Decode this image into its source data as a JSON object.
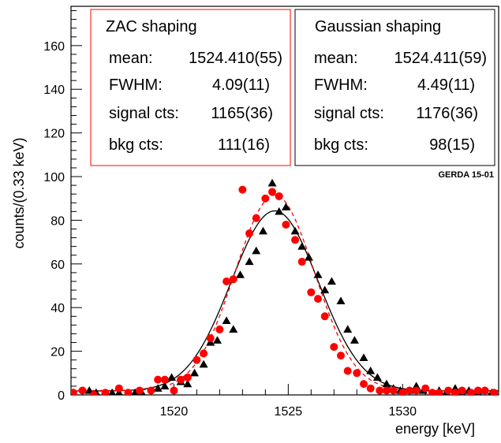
{
  "chart_data": {
    "type": "scatter",
    "title": "",
    "xlabel": "energy [keV]",
    "ylabel": "counts/(0.33 keV)",
    "xlim": [
      1515.5,
      1534.2
    ],
    "ylim": [
      0,
      178
    ],
    "grid": false,
    "x_ticks": [
      1520,
      1525,
      1530
    ],
    "y_ticks": [
      0,
      20,
      40,
      60,
      80,
      100,
      120,
      140,
      160
    ],
    "annotation": "GERDA 15-01",
    "legend": [
      {
        "key": "zac",
        "lines": [
          {
            "label": "ZAC shaping",
            "value": ""
          },
          {
            "label": "mean:",
            "value": "1524.410(55)"
          },
          {
            "label": "FWHM:",
            "value": "4.09(11)"
          },
          {
            "label": "signal cts:",
            "value": "1165(36)"
          },
          {
            "label": "bkg cts:",
            "value": "111(16)"
          }
        ]
      },
      {
        "key": "gauss",
        "lines": [
          {
            "label": "Gaussian shaping",
            "value": ""
          },
          {
            "label": "mean:",
            "value": "1524.411(59)"
          },
          {
            "label": "FWHM:",
            "value": "4.49(11)"
          },
          {
            "label": "signal cts:",
            "value": "1176(36)"
          },
          {
            "label": "bkg cts:",
            "value": "98(15)"
          }
        ]
      }
    ],
    "series": [
      {
        "key": "gauss",
        "marker": "triangle",
        "color": "#000000",
        "fit_style": "solid",
        "fit": {
          "amplitude": 82.5,
          "mean": 1524.411,
          "fwhm": 4.49,
          "background": 1.8
        },
        "points": [
          [
            1515.6,
            1
          ],
          [
            1516.3,
            2
          ],
          [
            1516.6,
            1
          ],
          [
            1517.3,
            1
          ],
          [
            1517.6,
            1
          ],
          [
            1518.3,
            1
          ],
          [
            1518.6,
            1
          ],
          [
            1519.3,
            3
          ],
          [
            1519.6,
            4
          ],
          [
            1519.9,
            8
          ],
          [
            1520.3,
            6
          ],
          [
            1520.6,
            5
          ],
          [
            1520.9,
            10
          ],
          [
            1521.3,
            14
          ],
          [
            1521.6,
            24
          ],
          [
            1521.9,
            25
          ],
          [
            1522.3,
            34
          ],
          [
            1522.6,
            30
          ],
          [
            1522.9,
            55
          ],
          [
            1523.3,
            61
          ],
          [
            1523.6,
            66
          ],
          [
            1523.9,
            75
          ],
          [
            1524.3,
            97
          ],
          [
            1524.6,
            84
          ],
          [
            1524.9,
            86
          ],
          [
            1525.3,
            75
          ],
          [
            1525.6,
            68
          ],
          [
            1525.9,
            63
          ],
          [
            1526.3,
            55
          ],
          [
            1526.6,
            48
          ],
          [
            1526.9,
            52
          ],
          [
            1527.3,
            43
          ],
          [
            1527.6,
            30
          ],
          [
            1527.9,
            25
          ],
          [
            1528.3,
            17
          ],
          [
            1528.6,
            11
          ],
          [
            1528.9,
            8
          ],
          [
            1529.3,
            5
          ],
          [
            1529.6,
            3
          ],
          [
            1529.9,
            2
          ],
          [
            1530.3,
            2
          ],
          [
            1530.6,
            4
          ],
          [
            1530.9,
            2
          ],
          [
            1531.3,
            1
          ],
          [
            1531.6,
            2
          ],
          [
            1531.9,
            1
          ],
          [
            1532.3,
            3
          ],
          [
            1532.6,
            1
          ],
          [
            1532.9,
            2
          ],
          [
            1533.3,
            1
          ],
          [
            1533.6,
            2
          ],
          [
            1533.9,
            1
          ]
        ]
      },
      {
        "key": "zac",
        "marker": "circle",
        "color": "#ff0000",
        "fit_style": "dashed",
        "fit": {
          "amplitude": 89.5,
          "mean": 1524.41,
          "fwhm": 4.09,
          "background": 2.0
        },
        "points": [
          [
            1515.6,
            1
          ],
          [
            1516.0,
            2
          ],
          [
            1516.5,
            0
          ],
          [
            1517.0,
            1
          ],
          [
            1517.6,
            3
          ],
          [
            1518.0,
            1
          ],
          [
            1518.5,
            2
          ],
          [
            1519.0,
            2
          ],
          [
            1519.3,
            7
          ],
          [
            1519.6,
            7
          ],
          [
            1520.0,
            2
          ],
          [
            1520.3,
            7
          ],
          [
            1520.6,
            8
          ],
          [
            1521.0,
            16
          ],
          [
            1521.3,
            19
          ],
          [
            1521.6,
            26
          ],
          [
            1522.0,
            30
          ],
          [
            1522.3,
            52
          ],
          [
            1522.6,
            53
          ],
          [
            1523.0,
            94
          ],
          [
            1523.3,
            74
          ],
          [
            1523.6,
            81
          ],
          [
            1524.0,
            90
          ],
          [
            1524.3,
            93
          ],
          [
            1524.6,
            91
          ],
          [
            1524.9,
            78
          ],
          [
            1525.3,
            71
          ],
          [
            1525.6,
            61
          ],
          [
            1526.0,
            47
          ],
          [
            1526.3,
            44
          ],
          [
            1526.6,
            36
          ],
          [
            1527.0,
            22
          ],
          [
            1527.3,
            18
          ],
          [
            1527.6,
            11
          ],
          [
            1528.0,
            10
          ],
          [
            1528.3,
            5
          ],
          [
            1528.6,
            3
          ],
          [
            1529.0,
            2
          ],
          [
            1529.3,
            2
          ],
          [
            1529.6,
            2
          ],
          [
            1530.0,
            1
          ],
          [
            1530.3,
            2
          ],
          [
            1530.6,
            2
          ],
          [
            1531.0,
            3
          ],
          [
            1531.3,
            1
          ],
          [
            1531.6,
            1
          ],
          [
            1532.0,
            2
          ],
          [
            1532.3,
            1
          ],
          [
            1532.6,
            2
          ],
          [
            1533.0,
            1
          ],
          [
            1533.3,
            2
          ],
          [
            1533.6,
            2
          ],
          [
            1534.0,
            1
          ]
        ]
      }
    ]
  }
}
